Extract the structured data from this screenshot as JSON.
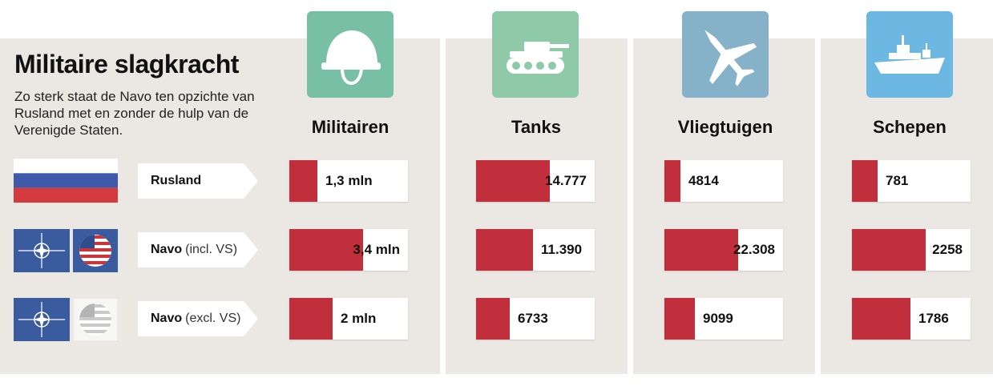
{
  "title": "Militaire slagkracht",
  "subtitle": "Zo sterk staat de Navo ten opzichte van Rusland met en zonder de hulp van de Verenigde Staten.",
  "rows": [
    {
      "name": "Rusland",
      "note": ""
    },
    {
      "name": "Navo",
      "note": "(incl. VS)"
    },
    {
      "name": "Navo",
      "note": "(excl. VS)"
    }
  ],
  "colors": {
    "bar": "#c22f3c",
    "panel": "#ebe8e4",
    "icon_militairen": "#77c0a6",
    "icon_tanks": "#8fcaa8",
    "icon_vliegtuigen": "#86b2c9",
    "icon_schepen": "#6cb8e2"
  },
  "chart_data": [
    {
      "type": "bar",
      "title": "Militairen",
      "icon": "helmet-icon",
      "categories": [
        "Rusland",
        "Navo (incl. VS)",
        "Navo (excl. VS)"
      ],
      "values": [
        1.3,
        3.4,
        2
      ],
      "labels": [
        "1,3 mln",
        "3,4 mln",
        "2 mln"
      ]
    },
    {
      "type": "bar",
      "title": "Tanks",
      "icon": "tank-icon",
      "categories": [
        "Rusland",
        "Navo (incl. VS)",
        "Navo (excl. VS)"
      ],
      "values": [
        14777,
        11390,
        6733
      ],
      "labels": [
        "14.777",
        "11.390",
        "6733"
      ]
    },
    {
      "type": "bar",
      "title": "Vliegtuigen",
      "icon": "fighter-jet-icon",
      "categories": [
        "Rusland",
        "Navo (incl. VS)",
        "Navo (excl. VS)"
      ],
      "values": [
        4814,
        22308,
        9099
      ],
      "labels": [
        "4814",
        "22.308",
        "9099"
      ]
    },
    {
      "type": "bar",
      "title": "Schepen",
      "icon": "ship-icon",
      "categories": [
        "Rusland",
        "Navo (incl. VS)",
        "Navo (excl. VS)"
      ],
      "values": [
        781,
        2258,
        1786
      ],
      "labels": [
        "781",
        "2258",
        "1786"
      ]
    }
  ]
}
